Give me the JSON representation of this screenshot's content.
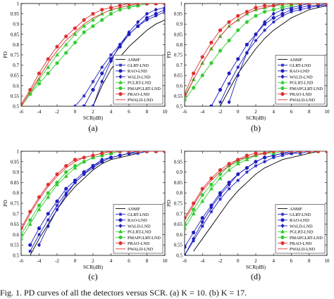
{
  "figure": {
    "caption_fragment": "Fig. 1.   PD curves of all the detectors versus SCR. (a) K = 10. (b) K = 17."
  },
  "chart_data": [
    {
      "type": "line",
      "panel_label": "(a)",
      "xlabel": "SCR(dB)",
      "ylabel": "PD",
      "xlim": [
        -6,
        10
      ],
      "ylim": [
        0.5,
        1
      ],
      "xticks": [
        "-6",
        "-4",
        "-2",
        "0",
        "2",
        "4",
        "6",
        "8",
        "10"
      ],
      "yticks": [
        "0.5",
        "0.55",
        "0.6",
        "0.65",
        "0.7",
        "0.75",
        "0.8",
        "0.85",
        "0.9",
        "0.95",
        "1"
      ],
      "grid": false,
      "legend_position": "bottom-right",
      "x": [
        -6,
        -5,
        -4,
        -3,
        -2,
        -1,
        0,
        1,
        2,
        3,
        4,
        5,
        6,
        7,
        8,
        9,
        10
      ],
      "series": [
        {
          "name": "ANMF",
          "color": "#000000",
          "marker": "none",
          "values": [
            null,
            null,
            null,
            null,
            null,
            null,
            null,
            null,
            0.5,
            0.6,
            0.68,
            0.74,
            0.79,
            0.83,
            0.87,
            0.9,
            0.92
          ]
        },
        {
          "name": "GLRT-LND",
          "color": "#1f1fbf",
          "marker": "asterisk",
          "values": [
            null,
            null,
            null,
            null,
            null,
            null,
            0.5,
            0.55,
            0.62,
            0.69,
            0.75,
            0.8,
            0.85,
            0.89,
            0.92,
            0.94,
            0.96
          ]
        },
        {
          "name": "RAO-LND",
          "color": "#1f1fbf",
          "marker": "circle",
          "values": [
            null,
            null,
            null,
            null,
            null,
            null,
            null,
            0.5,
            0.58,
            0.66,
            0.73,
            0.79,
            0.85,
            0.89,
            0.93,
            0.95,
            0.97
          ]
        },
        {
          "name": "WALD-LND",
          "color": "#1f1fbf",
          "marker": "diamond",
          "values": [
            null,
            null,
            null,
            null,
            null,
            null,
            null,
            null,
            0.5,
            0.62,
            0.72,
            0.8,
            0.86,
            0.91,
            0.95,
            0.97,
            0.98
          ]
        },
        {
          "name": "PGLRT-LND",
          "color": "#33cc33",
          "marker": "triangle",
          "values": [
            0.5,
            0.56,
            0.63,
            0.69,
            0.75,
            0.8,
            0.85,
            0.89,
            0.92,
            0.95,
            0.97,
            0.98,
            0.99,
            0.99,
            1,
            1,
            1
          ]
        },
        {
          "name": "PMAPGLRT-LND",
          "color": "#33cc33",
          "marker": "circle",
          "values": [
            0.5,
            0.56,
            0.61,
            0.66,
            0.71,
            0.76,
            0.81,
            0.86,
            0.89,
            0.92,
            0.95,
            0.97,
            0.98,
            0.99,
            1,
            1,
            1
          ]
        },
        {
          "name": "PRAO-LND",
          "color": "#e03030",
          "marker": "circle",
          "values": [
            0.51,
            0.58,
            0.66,
            0.73,
            0.79,
            0.84,
            0.88,
            0.92,
            0.95,
            0.97,
            0.98,
            0.99,
            1,
            1,
            1,
            1,
            1
          ]
        },
        {
          "name": "PWALD-LND",
          "color": "#e03030",
          "marker": "none",
          "values": [
            0.5,
            0.57,
            0.64,
            0.71,
            0.77,
            0.82,
            0.86,
            0.9,
            0.93,
            0.95,
            0.97,
            0.98,
            0.99,
            1,
            1,
            1,
            1
          ]
        }
      ]
    },
    {
      "type": "line",
      "panel_label": "(b)",
      "xlabel": "SCR(dB)",
      "ylabel": "PD",
      "xlim": [
        -6,
        10
      ],
      "ylim": [
        0.5,
        1
      ],
      "xticks": [
        "-6",
        "-4",
        "-2",
        "0",
        "2",
        "4",
        "6",
        "8",
        "10"
      ],
      "yticks": [
        "0.5",
        "0.55",
        "0.6",
        "0.65",
        "0.7",
        "0.75",
        "0.8",
        "0.85",
        "0.9",
        "0.95",
        "1"
      ],
      "grid": false,
      "legend_position": "bottom-right",
      "x": [
        -6,
        -5,
        -4,
        -3,
        -2,
        -1,
        0,
        1,
        2,
        3,
        4,
        5,
        6,
        7,
        8,
        9,
        10
      ],
      "series": [
        {
          "name": "ANMF",
          "color": "#000000",
          "marker": "none",
          "values": [
            null,
            null,
            null,
            null,
            0.5,
            0.58,
            0.66,
            0.72,
            0.78,
            0.83,
            0.87,
            0.9,
            0.93,
            0.95,
            0.97,
            0.98,
            0.99
          ]
        },
        {
          "name": "GLRT-LND",
          "color": "#1f1fbf",
          "marker": "asterisk",
          "values": [
            null,
            null,
            null,
            null,
            0.52,
            0.61,
            0.69,
            0.76,
            0.82,
            0.87,
            0.91,
            0.94,
            0.96,
            0.97,
            0.98,
            0.99,
            0.99
          ]
        },
        {
          "name": "RAO-LND",
          "color": "#1f1fbf",
          "marker": "circle",
          "values": [
            null,
            null,
            null,
            0.5,
            0.58,
            0.66,
            0.73,
            0.8,
            0.85,
            0.9,
            0.93,
            0.95,
            0.97,
            0.98,
            0.99,
            0.99,
            1
          ]
        },
        {
          "name": "WALD-LND",
          "color": "#1f1fbf",
          "marker": "diamond",
          "values": [
            null,
            null,
            null,
            null,
            null,
            0.52,
            0.65,
            0.76,
            0.85,
            0.91,
            0.95,
            0.97,
            0.98,
            0.99,
            1,
            1,
            1
          ]
        },
        {
          "name": "PGLRT-LND",
          "color": "#33cc33",
          "marker": "triangle",
          "values": [
            0.55,
            0.63,
            0.71,
            0.78,
            0.84,
            0.89,
            0.92,
            0.95,
            0.97,
            0.98,
            0.99,
            0.99,
            1,
            1,
            1,
            1,
            1
          ]
        },
        {
          "name": "PMAPGLRT-LND",
          "color": "#33cc33",
          "marker": "circle",
          "values": [
            0.53,
            0.59,
            0.65,
            0.71,
            0.77,
            0.82,
            0.87,
            0.91,
            0.94,
            0.96,
            0.97,
            0.98,
            0.99,
            1,
            1,
            1,
            1
          ]
        },
        {
          "name": "PRAO-LND",
          "color": "#e03030",
          "marker": "circle",
          "values": [
            0.56,
            0.66,
            0.74,
            0.81,
            0.87,
            0.91,
            0.94,
            0.96,
            0.98,
            0.99,
            0.99,
            1,
            1,
            1,
            1,
            1,
            1
          ]
        },
        {
          "name": "PWALD-LND",
          "color": "#e03030",
          "marker": "none",
          "values": [
            0.54,
            0.63,
            0.71,
            0.78,
            0.84,
            0.89,
            0.92,
            0.95,
            0.97,
            0.98,
            0.99,
            1,
            1,
            1,
            1,
            1,
            1
          ]
        }
      ]
    },
    {
      "type": "line",
      "panel_label": "(c)",
      "xlabel": "SCR(dB)",
      "ylabel": "PD",
      "xlim": [
        -6,
        10
      ],
      "ylim": [
        0.5,
        1
      ],
      "xticks": [
        "-6",
        "-4",
        "-2",
        "0",
        "2",
        "4",
        "6",
        "8",
        "10"
      ],
      "yticks": [
        "0.5",
        "0.55",
        "0.6",
        "0.65",
        "0.7",
        "0.75",
        "0.8",
        "0.85",
        "0.9",
        "0.95",
        "1"
      ],
      "grid": false,
      "legend_position": "bottom-right",
      "x": [
        -6,
        -5,
        -4,
        -3,
        -2,
        -1,
        0,
        1,
        2,
        3,
        4,
        5,
        6,
        7,
        8,
        9,
        10
      ],
      "series": [
        {
          "name": "ANMF",
          "color": "#000000",
          "marker": "none",
          "values": [
            null,
            0.5,
            0.58,
            0.65,
            0.72,
            0.78,
            0.83,
            0.87,
            0.91,
            0.94,
            0.96,
            0.97,
            0.98,
            0.99,
            1,
            1,
            1
          ]
        },
        {
          "name": "GLRT-LND",
          "color": "#1f1fbf",
          "marker": "asterisk",
          "values": [
            null,
            0.52,
            0.6,
            0.67,
            0.74,
            0.8,
            0.85,
            0.89,
            0.92,
            0.95,
            0.97,
            0.98,
            0.99,
            0.99,
            1,
            1,
            1
          ]
        },
        {
          "name": "RAO-LND",
          "color": "#1f1fbf",
          "marker": "circle",
          "values": [
            null,
            0.55,
            0.63,
            0.7,
            0.76,
            0.82,
            0.86,
            0.9,
            0.93,
            0.95,
            0.97,
            0.98,
            0.99,
            1,
            1,
            1,
            1
          ]
        },
        {
          "name": "WALD-LND",
          "color": "#1f1fbf",
          "marker": "diamond",
          "values": [
            null,
            null,
            0.55,
            0.64,
            0.72,
            0.79,
            0.85,
            0.89,
            0.93,
            0.96,
            0.97,
            0.98,
            0.99,
            1,
            1,
            1,
            1
          ]
        },
        {
          "name": "PGLRT-LND",
          "color": "#33cc33",
          "marker": "triangle",
          "values": [
            0.58,
            0.65,
            0.72,
            0.78,
            0.84,
            0.88,
            0.92,
            0.95,
            0.97,
            0.98,
            0.99,
            1,
            1,
            1,
            1,
            1,
            1
          ]
        },
        {
          "name": "PMAPGLRT-LND",
          "color": "#33cc33",
          "marker": "circle",
          "values": [
            0.6,
            0.67,
            0.74,
            0.8,
            0.85,
            0.9,
            0.93,
            0.95,
            0.97,
            0.98,
            0.99,
            1,
            1,
            1,
            1,
            1,
            1
          ]
        },
        {
          "name": "PRAO-LND",
          "color": "#e03030",
          "marker": "circle",
          "values": [
            0.63,
            0.71,
            0.78,
            0.84,
            0.89,
            0.93,
            0.96,
            0.97,
            0.98,
            0.99,
            1,
            1,
            1,
            1,
            1,
            1,
            1
          ]
        },
        {
          "name": "PWALD-LND",
          "color": "#e03030",
          "marker": "none",
          "values": [
            0.62,
            0.7,
            0.77,
            0.83,
            0.88,
            0.92,
            0.95,
            0.97,
            0.98,
            0.99,
            1,
            1,
            1,
            1,
            1,
            1,
            1
          ]
        }
      ]
    },
    {
      "type": "line",
      "panel_label": "(d)",
      "xlabel": "SCR(dB)",
      "ylabel": "PD",
      "xlim": [
        -6,
        10
      ],
      "ylim": [
        0.5,
        1
      ],
      "xticks": [
        "-6",
        "-4",
        "-2",
        "0",
        "2",
        "4",
        "6",
        "8",
        "10"
      ],
      "yticks": [
        "0.5",
        "0.55",
        "0.6",
        "0.65",
        "0.7",
        "0.75",
        "0.8",
        "0.85",
        "0.9",
        "0.95",
        "1"
      ],
      "grid": false,
      "legend_position": "bottom-right",
      "x": [
        -6,
        -5,
        -4,
        -3,
        -2,
        -1,
        0,
        1,
        2,
        3,
        4,
        5,
        6,
        7,
        8,
        9,
        10
      ],
      "series": [
        {
          "name": "ANMF",
          "color": "#000000",
          "marker": "none",
          "values": [
            null,
            0.52,
            0.58,
            0.64,
            0.7,
            0.76,
            0.81,
            0.85,
            0.89,
            0.92,
            0.94,
            0.96,
            0.97,
            0.98,
            0.99,
            1,
            1
          ]
        },
        {
          "name": "GLRT-LND",
          "color": "#1f1fbf",
          "marker": "asterisk",
          "values": [
            0.5,
            0.57,
            0.64,
            0.71,
            0.77,
            0.82,
            0.86,
            0.9,
            0.93,
            0.95,
            0.97,
            0.98,
            0.99,
            0.99,
            1,
            1,
            1
          ]
        },
        {
          "name": "RAO-LND",
          "color": "#1f1fbf",
          "marker": "circle",
          "values": [
            0.54,
            0.61,
            0.68,
            0.74,
            0.8,
            0.85,
            0.89,
            0.92,
            0.95,
            0.97,
            0.98,
            0.99,
            0.99,
            1,
            1,
            1,
            1
          ]
        },
        {
          "name": "WALD-LND",
          "color": "#1f1fbf",
          "marker": "diamond",
          "values": [
            0.5,
            0.58,
            0.66,
            0.73,
            0.79,
            0.84,
            0.89,
            0.92,
            0.95,
            0.97,
            0.98,
            0.99,
            1,
            1,
            1,
            1,
            1
          ]
        },
        {
          "name": "PGLRT-LND",
          "color": "#33cc33",
          "marker": "triangle",
          "values": [
            0.63,
            0.7,
            0.76,
            0.82,
            0.87,
            0.91,
            0.94,
            0.96,
            0.98,
            0.99,
            0.99,
            1,
            1,
            1,
            1,
            1,
            1
          ]
        },
        {
          "name": "PMAPGLRT-LND",
          "color": "#33cc33",
          "marker": "circle",
          "values": [
            0.65,
            0.72,
            0.79,
            0.84,
            0.89,
            0.93,
            0.95,
            0.97,
            0.98,
            0.99,
            1,
            1,
            1,
            1,
            1,
            1,
            1
          ]
        },
        {
          "name": "PRAO-LND",
          "color": "#e03030",
          "marker": "circle",
          "values": [
            0.68,
            0.75,
            0.82,
            0.87,
            0.91,
            0.94,
            0.96,
            0.98,
            0.99,
            0.99,
            1,
            1,
            1,
            1,
            1,
            1,
            1
          ]
        },
        {
          "name": "PWALD-LND",
          "color": "#e03030",
          "marker": "none",
          "values": [
            0.67,
            0.74,
            0.81,
            0.86,
            0.9,
            0.93,
            0.96,
            0.97,
            0.98,
            0.99,
            1,
            1,
            1,
            1,
            1,
            1,
            1
          ]
        }
      ]
    }
  ]
}
